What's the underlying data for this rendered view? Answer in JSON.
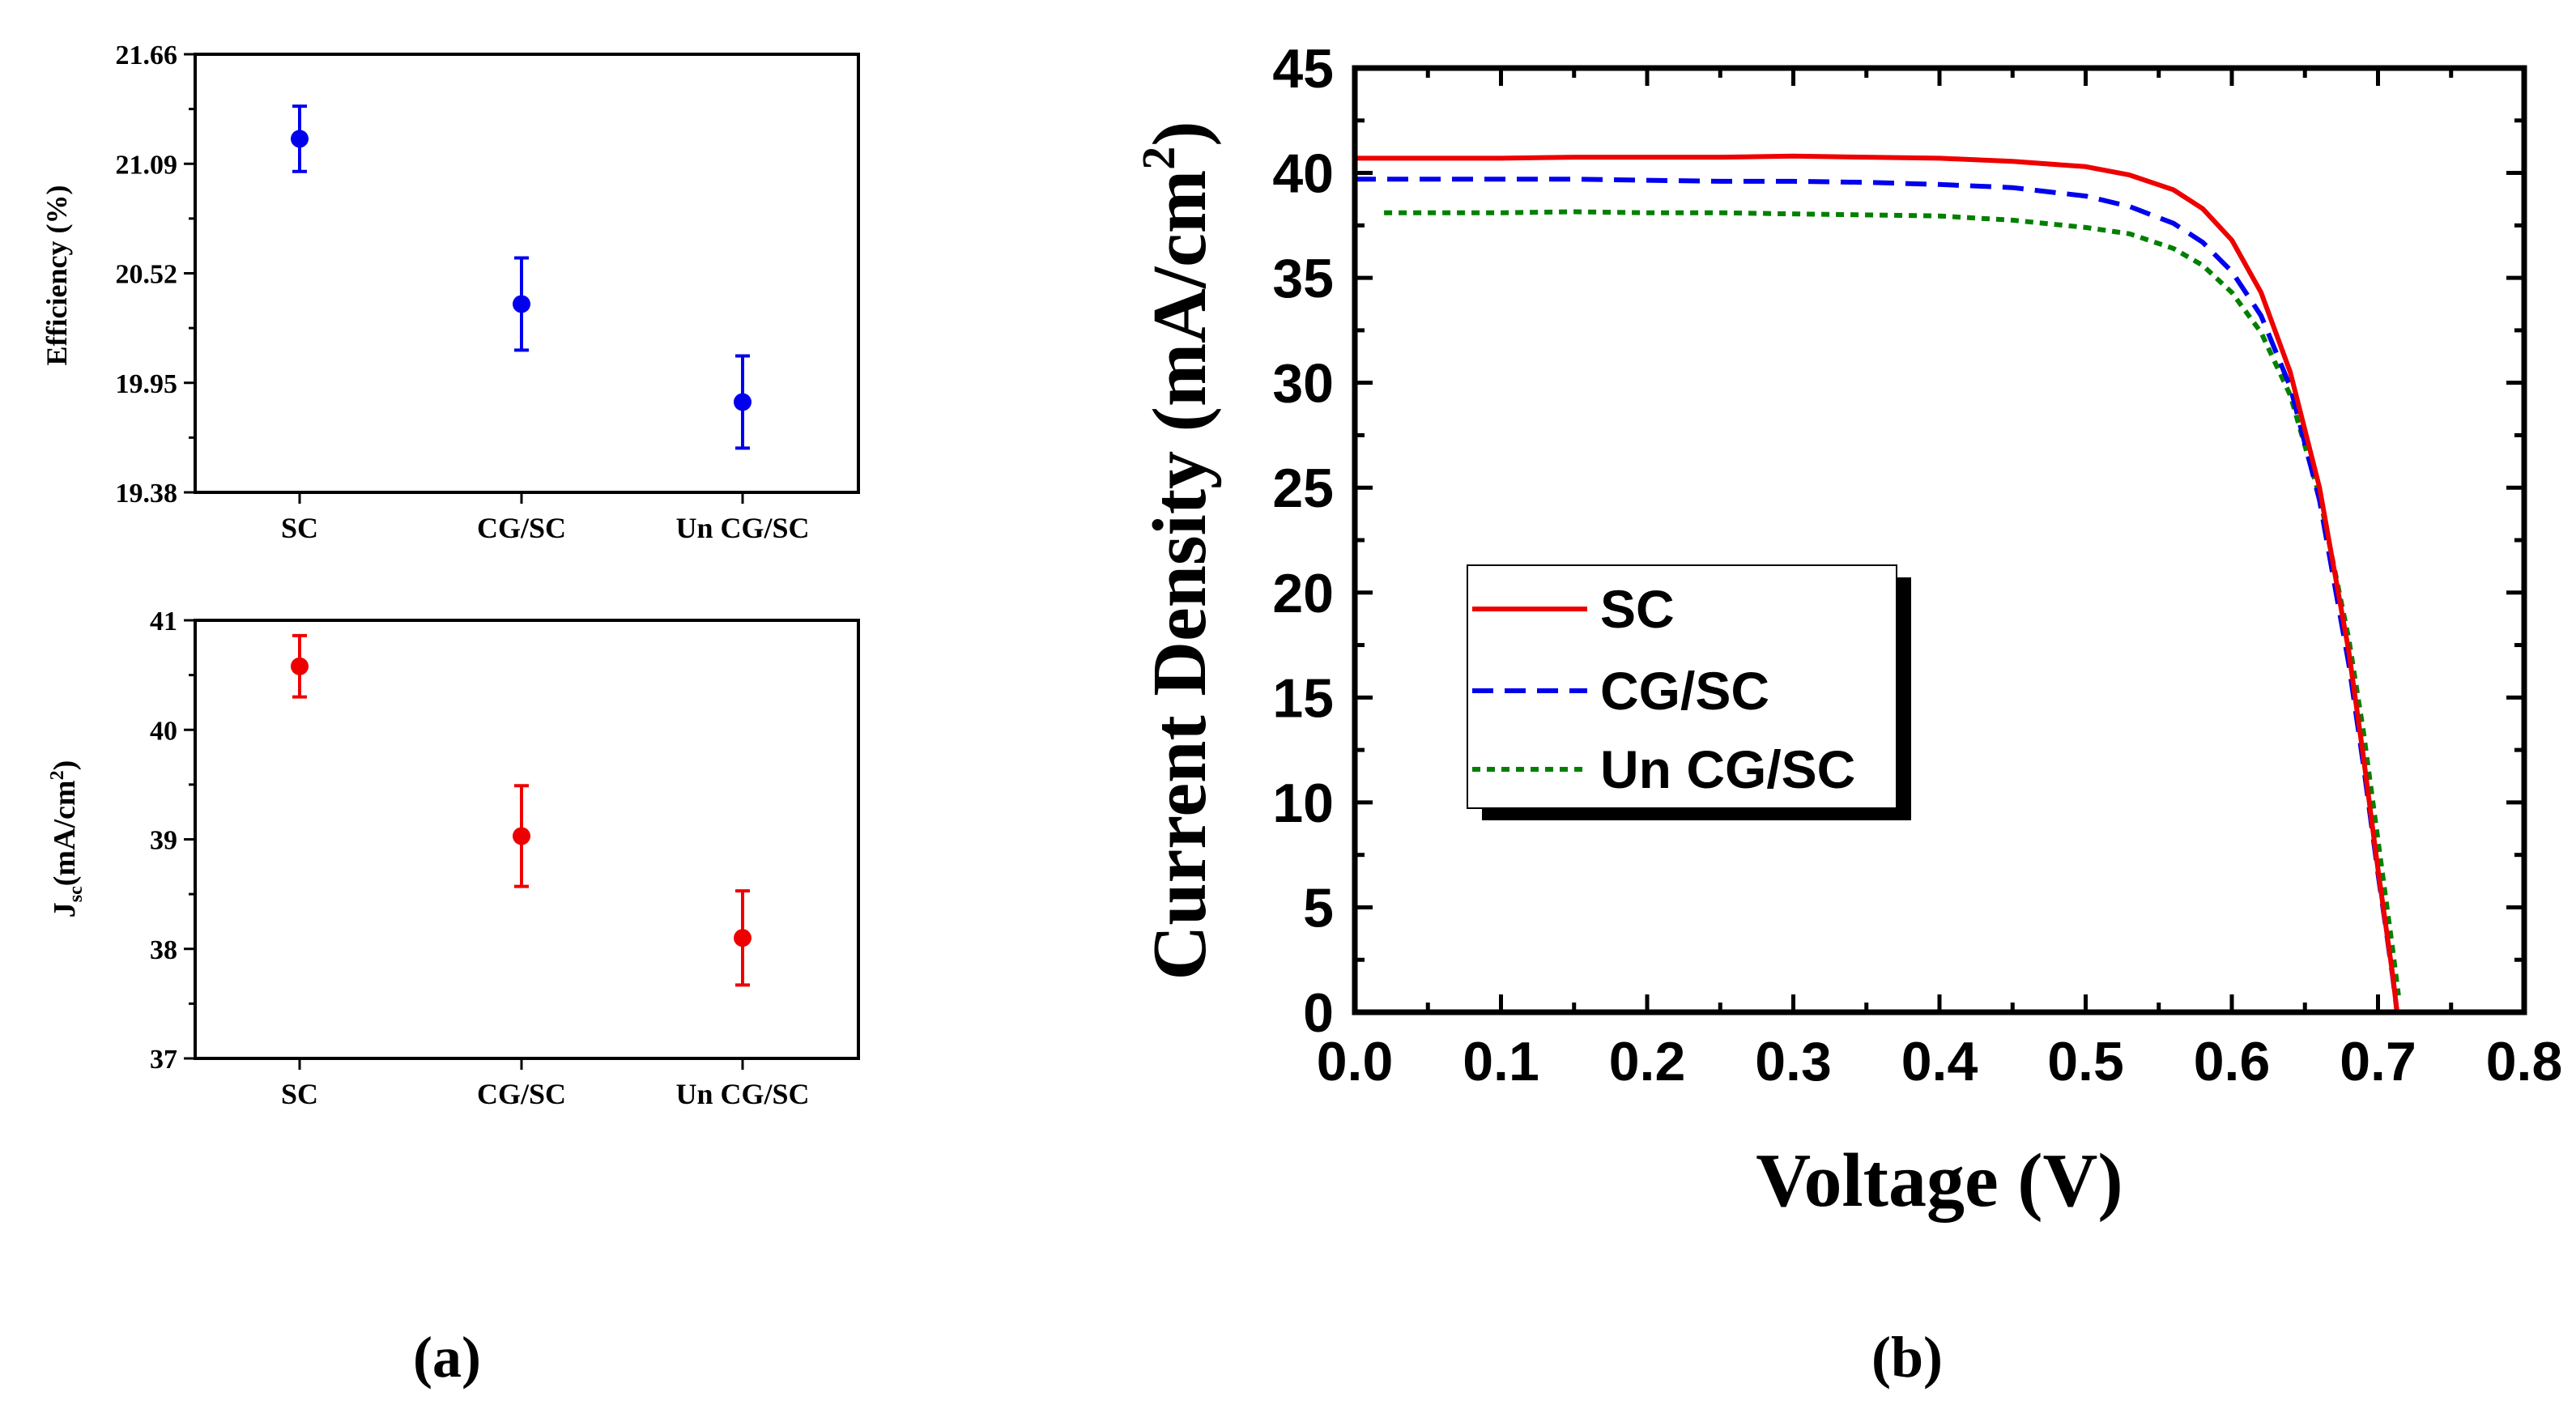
{
  "colors": {
    "efficiency": "#0000ee",
    "jsc": "#ee0000",
    "sc": "#ee0000",
    "cg_sc": "#0000ee",
    "un_cg_sc": "#008000",
    "axis": "#000000"
  },
  "panel_labels": {
    "a": "(a)",
    "b": "(b)"
  },
  "chart_data": [
    {
      "id": "efficiency",
      "type": "scatter",
      "ylabel": "Efficiency (%)",
      "categories": [
        "SC",
        "CG/SC",
        "Un CG/SC"
      ],
      "values": [
        21.22,
        20.36,
        19.85
      ],
      "errors": [
        0.17,
        0.24,
        0.24
      ],
      "ylim": [
        19.38,
        21.66
      ],
      "yticks": [
        "19.38",
        "19.95",
        "20.52",
        "21.09",
        "21.66"
      ],
      "ytick_values": [
        19.38,
        19.95,
        20.52,
        21.09,
        21.66
      ]
    },
    {
      "id": "jsc",
      "type": "scatter",
      "ylabel_main": "J",
      "ylabel_sub": "sc",
      "ylabel_rest": "(mA/cm",
      "ylabel_sup": "2",
      "ylabel_close": ")",
      "categories": [
        "SC",
        "CG/SC",
        "Un CG/SC"
      ],
      "values": [
        40.58,
        39.03,
        38.1
      ],
      "errors": [
        0.28,
        0.46,
        0.43
      ],
      "ylim": [
        37,
        41
      ],
      "yticks": [
        "37",
        "38",
        "39",
        "40",
        "41"
      ],
      "ytick_values": [
        37,
        38,
        39,
        40,
        41
      ]
    },
    {
      "id": "jv",
      "type": "line",
      "xlabel": "Voltage (V)",
      "ylabel": "Current Density (mA/cm",
      "ylabel_sup": "2",
      "ylabel_close": ")",
      "xlim": [
        0,
        0.8
      ],
      "ylim": [
        0,
        45
      ],
      "xticks": [
        "0.0",
        "0.1",
        "0.2",
        "0.3",
        "0.4",
        "0.5",
        "0.6",
        "0.7",
        "0.8"
      ],
      "xtick_values": [
        0,
        0.1,
        0.2,
        0.3,
        0.4,
        0.5,
        0.6,
        0.7,
        0.8
      ],
      "yticks": [
        "0",
        "5",
        "10",
        "15",
        "20",
        "25",
        "30",
        "35",
        "40",
        "45"
      ],
      "ytick_values": [
        0,
        5,
        10,
        15,
        20,
        25,
        30,
        35,
        40,
        45
      ],
      "series": [
        {
          "name": "SC",
          "style": "solid",
          "x": [
            0.0,
            0.05,
            0.1,
            0.15,
            0.2,
            0.25,
            0.3,
            0.35,
            0.4,
            0.45,
            0.5,
            0.53,
            0.56,
            0.58,
            0.6,
            0.62,
            0.64,
            0.66,
            0.68,
            0.69,
            0.7,
            0.705,
            0.71,
            0.713
          ],
          "y": [
            40.7,
            40.7,
            40.7,
            40.75,
            40.75,
            40.75,
            40.8,
            40.75,
            40.7,
            40.55,
            40.3,
            39.9,
            39.2,
            38.3,
            36.8,
            34.3,
            30.5,
            25.0,
            17.2,
            12.2,
            6.8,
            4.3,
            1.8,
            0.0
          ]
        },
        {
          "name": "CG/SC",
          "style": "dashed",
          "x": [
            0.0,
            0.05,
            0.1,
            0.15,
            0.2,
            0.25,
            0.3,
            0.35,
            0.4,
            0.45,
            0.5,
            0.53,
            0.56,
            0.58,
            0.6,
            0.62,
            0.64,
            0.66,
            0.68,
            0.69,
            0.7,
            0.705,
            0.71,
            0.713
          ],
          "y": [
            39.7,
            39.7,
            39.7,
            39.7,
            39.65,
            39.6,
            39.6,
            39.55,
            39.45,
            39.3,
            38.9,
            38.4,
            37.6,
            36.7,
            35.3,
            33.2,
            29.8,
            24.4,
            16.6,
            11.8,
            6.6,
            4.2,
            1.7,
            0.0
          ]
        },
        {
          "name": "Un CG/SC",
          "style": "dotted",
          "x": [
            0.02,
            0.05,
            0.1,
            0.15,
            0.2,
            0.25,
            0.3,
            0.35,
            0.4,
            0.45,
            0.5,
            0.53,
            0.56,
            0.58,
            0.6,
            0.62,
            0.64,
            0.66,
            0.68,
            0.69,
            0.7,
            0.705,
            0.71,
            0.714
          ],
          "y": [
            38.1,
            38.1,
            38.1,
            38.15,
            38.1,
            38.1,
            38.05,
            38.0,
            37.95,
            37.75,
            37.4,
            37.1,
            36.4,
            35.6,
            34.3,
            32.4,
            29.4,
            24.6,
            17.8,
            13.4,
            8.2,
            5.6,
            3.0,
            0.8
          ]
        }
      ]
    }
  ]
}
